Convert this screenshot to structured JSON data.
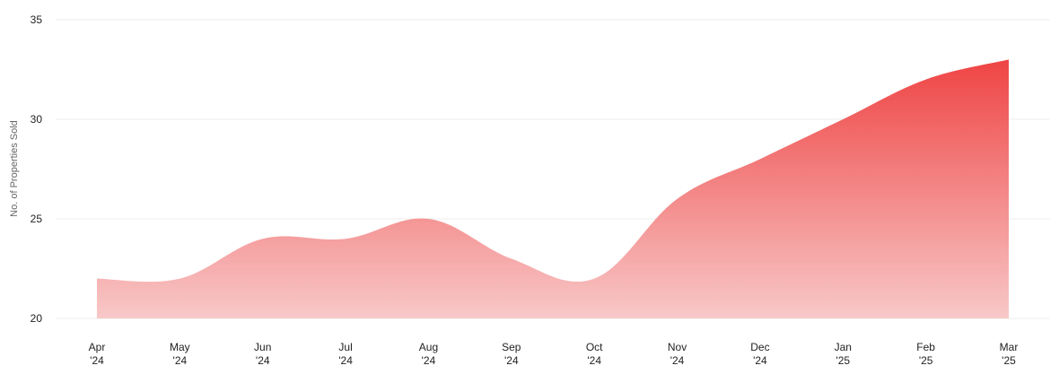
{
  "chart_data": {
    "type": "area",
    "title": "",
    "xlabel": "",
    "ylabel": "No. of Properties Sold",
    "ylim": [
      20,
      35
    ],
    "yticks": [
      "20",
      "25",
      "30",
      "35"
    ],
    "grid": true,
    "legend": "none",
    "categories": [
      [
        "Apr",
        "'24"
      ],
      [
        "May",
        "'24"
      ],
      [
        "Jun",
        "'24"
      ],
      [
        "Jul",
        "'24"
      ],
      [
        "Aug",
        "'24"
      ],
      [
        "Sep",
        "'24"
      ],
      [
        "Oct",
        "'24"
      ],
      [
        "Nov",
        "'24"
      ],
      [
        "Dec",
        "'24"
      ],
      [
        "Jan",
        "'25"
      ],
      [
        "Feb",
        "'25"
      ],
      [
        "Mar",
        "'25"
      ]
    ],
    "series": [
      {
        "values": [
          22,
          22,
          24,
          24,
          25,
          23,
          22,
          26,
          28,
          30,
          32,
          33
        ],
        "color_top": "#ef4444",
        "color_bottom": "#f8c8c8"
      }
    ]
  }
}
